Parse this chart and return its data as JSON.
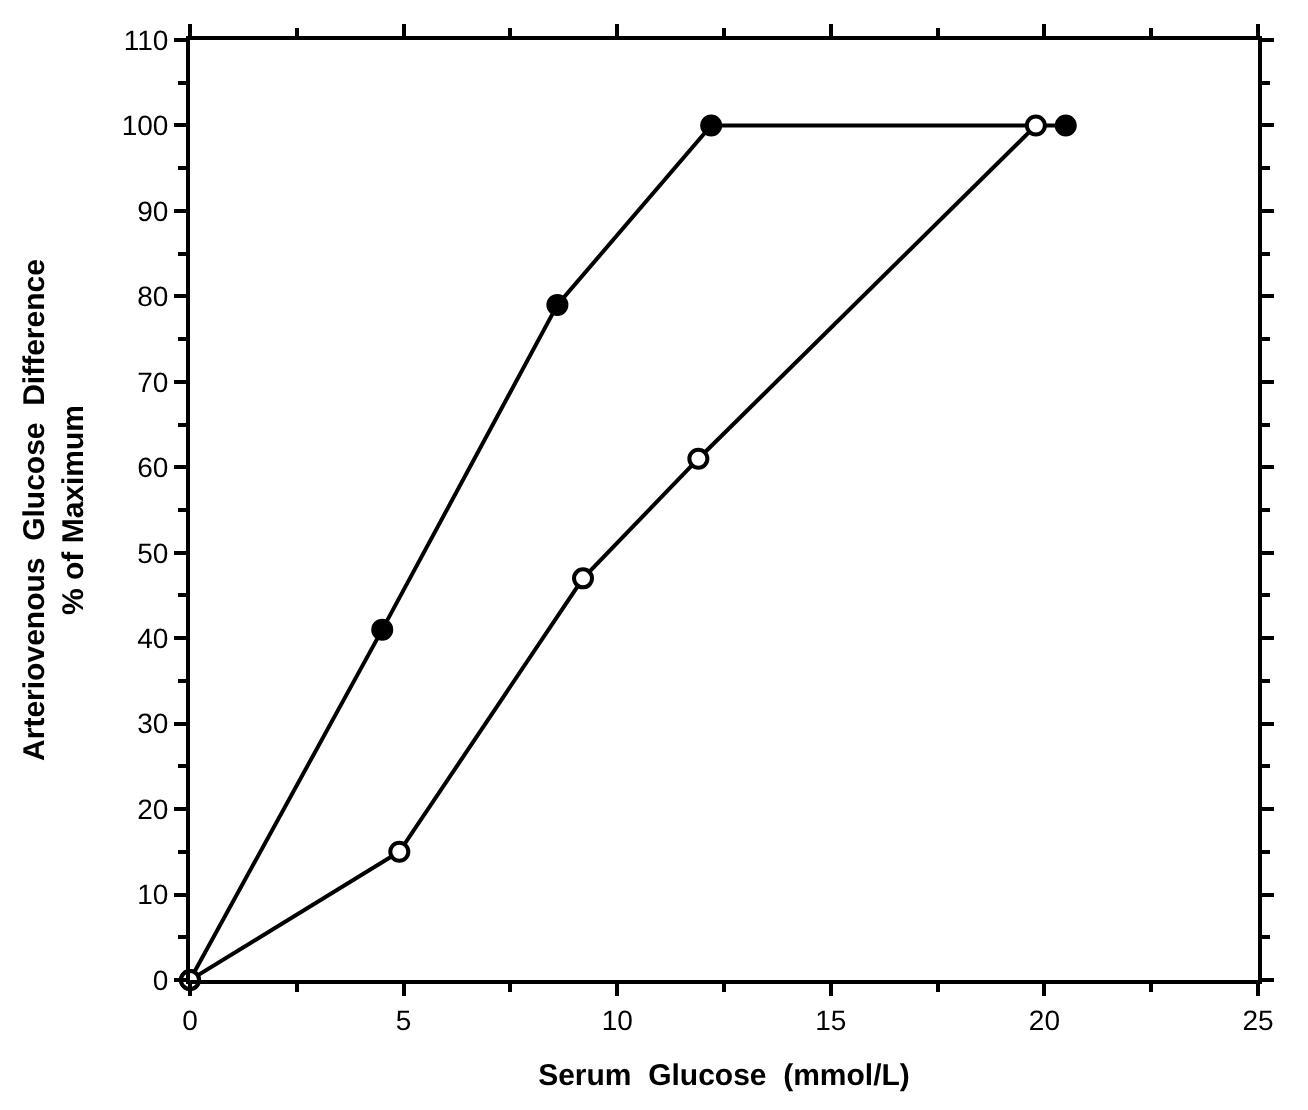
{
  "chart_data": {
    "type": "line",
    "xlabel": "Serum  Glucose  (mmol/L)",
    "ylabel": "Arteriovenous  Glucose  Difference\n% of Maximum",
    "series": [
      {
        "color": "#000000",
        "marker": "circle",
        "x": [
          0,
          4.5,
          8.6,
          12.2,
          20.5
        ],
        "values": [
          0,
          41,
          79,
          100,
          100
        ]
      },
      {
        "color": "#000000",
        "marker": "circle-open",
        "x": [
          0,
          4.9,
          9.2,
          11.9,
          19.8
        ],
        "values": [
          0,
          15,
          47,
          61,
          100
        ]
      }
    ],
    "xlim": [
      0,
      25
    ],
    "xticks": [
      0,
      5,
      10,
      15,
      20,
      25
    ],
    "ylim": [
      0,
      110
    ],
    "yticks": [
      0,
      10,
      20,
      30,
      40,
      50,
      60,
      70,
      80,
      90,
      100,
      110
    ],
    "legend": false,
    "line_style": "solid"
  }
}
